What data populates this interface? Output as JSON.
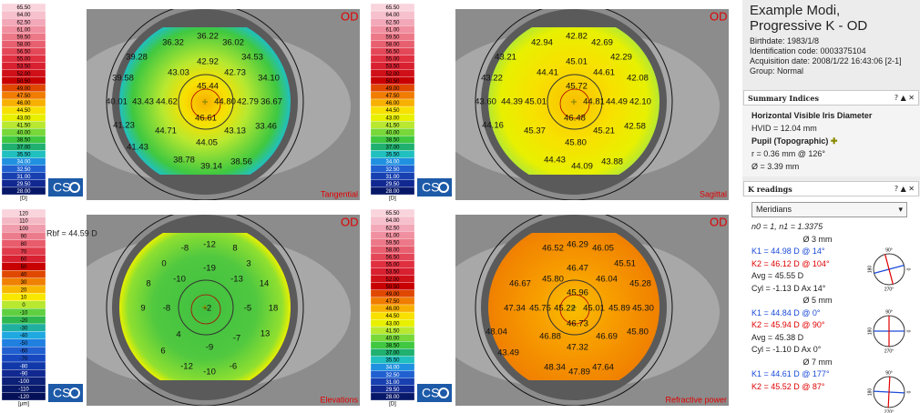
{
  "maps": [
    {
      "title": "Tangential",
      "eye": "OD",
      "logo": "CS",
      "unit": "[D]",
      "palette": "diopter",
      "scale": [
        "65.50",
        "64.00",
        "62.50",
        "61.00",
        "59.50",
        "58.00",
        "56.50",
        "55.00",
        "53.50",
        "52.00",
        "50.50",
        "49.00",
        "47.50",
        "46.00",
        "44.50",
        "43.00",
        "41.50",
        "40.00",
        "38.50",
        "37.00",
        "35.50",
        "34.00",
        "32.50",
        "31.00",
        "29.50",
        "28.00"
      ],
      "values": [
        "36.22",
        "36.32",
        "36.02",
        "39.28",
        "42.92",
        "34.53",
        "43.03",
        "42.73",
        "39.58",
        "34.10",
        "45.44",
        "40.01",
        "43.43",
        "44.62",
        "44.80",
        "42.79",
        "36.67",
        "46.61",
        "41.23",
        "44.71",
        "43.13",
        "33.46",
        "44.05",
        "41.43",
        "38.78",
        "39.14",
        "38.56"
      ]
    },
    {
      "title": "Sagittal",
      "eye": "OD",
      "logo": "CS",
      "unit": "[D]",
      "palette": "diopter",
      "scale": [
        "65.50",
        "64.00",
        "62.50",
        "61.00",
        "59.50",
        "58.00",
        "56.50",
        "55.00",
        "53.50",
        "52.00",
        "50.50",
        "49.00",
        "47.50",
        "46.00",
        "44.50",
        "43.00",
        "41.50",
        "40.00",
        "38.50",
        "37.00",
        "35.50",
        "34.00",
        "32.50",
        "31.00",
        "29.50",
        "28.00"
      ],
      "values": [
        "42.82",
        "42.94",
        "42.69",
        "43.21",
        "45.01",
        "42.29",
        "44.41",
        "44.61",
        "43.22",
        "42.08",
        "45.72",
        "43.60",
        "44.39",
        "45.01",
        "44.81",
        "44.49",
        "42.10",
        "46.48",
        "44.16",
        "45.37",
        "45.21",
        "42.58",
        "45.80",
        "44.43",
        "44.09",
        "43.88"
      ]
    },
    {
      "title": "Elevations",
      "eye": "OD",
      "logo": "CS",
      "unit": "[µm]",
      "palette": "elevation",
      "note": "Rbf = 44.59 D",
      "scale": [
        "120",
        "110",
        "100",
        "90",
        "80",
        "70",
        "60",
        "50",
        "40",
        "30",
        "20",
        "10",
        "0",
        "-10",
        "-20",
        "-30",
        "-40",
        "-50",
        "-60",
        "-70",
        "-80",
        "-90",
        "-100",
        "-110",
        "-120"
      ],
      "values": [
        "-12",
        "-8",
        "8",
        "0",
        "-19",
        "3",
        "-10",
        "-13",
        "8",
        "14",
        "9",
        "-8",
        "-2",
        "-5",
        "18",
        "4",
        "-7",
        "13",
        "6",
        "-9",
        "-12",
        "-10",
        "-6"
      ]
    },
    {
      "title": "Refractive power",
      "eye": "OD",
      "logo": "CS",
      "unit": "[D]",
      "palette": "diopter",
      "scale": [
        "65.50",
        "64.00",
        "62.50",
        "61.00",
        "59.50",
        "58.00",
        "56.50",
        "55.00",
        "53.50",
        "52.00",
        "50.50",
        "49.00",
        "47.50",
        "46.00",
        "44.50",
        "43.00",
        "41.50",
        "40.00",
        "38.50",
        "37.00",
        "35.50",
        "34.00",
        "32.50",
        "31.00",
        "29.50",
        "28.00"
      ],
      "values": [
        "46.29",
        "46.52",
        "46.05",
        "45.51",
        "46.47",
        "45.80",
        "46.04",
        "46.67",
        "45.28",
        "45.96",
        "47.34",
        "45.75",
        "45.22",
        "45.01",
        "45.89",
        "45.30",
        "46.73",
        "48.04",
        "46.88",
        "46.69",
        "45.80",
        "47.32",
        "43.49",
        "48.34",
        "47.89",
        "47.64"
      ]
    }
  ],
  "palettes": {
    "diopter": [
      "#f9d4dc",
      "#f6c0cc",
      "#f2a8b8",
      "#f090a0",
      "#ec7888",
      "#e86070",
      "#e44858",
      "#e03040",
      "#d82030",
      "#d01018",
      "#c80000",
      "#e04800",
      "#f07c00",
      "#f8b000",
      "#f8e000",
      "#e8f000",
      "#b8e830",
      "#78d838",
      "#40c840",
      "#20b070",
      "#20c0c0",
      "#2090e0",
      "#2060d0",
      "#1840b0",
      "#102890",
      "#081868"
    ],
    "elevation": [
      "#f9d4dc",
      "#f4b8c4",
      "#f09cac",
      "#ec7c8c",
      "#e85c6c",
      "#e03c4c",
      "#d82030",
      "#c80000",
      "#e04800",
      "#f08000",
      "#f8b800",
      "#f8e800",
      "#b8e830",
      "#60d040",
      "#30b850",
      "#20b0a0",
      "#20a8e0",
      "#2080e0",
      "#2060d0",
      "#1848c0",
      "#1038a8",
      "#102890",
      "#0c2078",
      "#081868",
      "#041058"
    ]
  },
  "patient": {
    "name": "Example Modi,",
    "exam": "Progressive K - OD",
    "birthdate": "Birthdate: 1983/1/8",
    "id": "Identification code: 0003375104",
    "acquisition": "Acquisition date: 2008/1/22 16:43:06 [2-1]",
    "group": "Group: Normal"
  },
  "panel_buttons": "? ▲ ✕",
  "summary": {
    "header": "Summary Indices",
    "hvid_title": "Horizontal Visible Iris Diameter",
    "hvid": "HVID = 12.04 mm",
    "pupil_title": "Pupil (Topographic)",
    "pupil_r": "r = 0.36 mm @ 126°",
    "pupil_d": "Ø = 3.39 mm"
  },
  "k_readings": {
    "header": "K readings",
    "mode": "Meridians",
    "indices": "n0 = 1, n1 = 1.3375",
    "dial": {
      "top": "90°",
      "left": "180",
      "right": "0",
      "bottom": "270°"
    },
    "groups": [
      {
        "diameter": "Ø 3 mm",
        "k1": "K1 = 44.98 D @ 14°",
        "k2": "K2 = 46.12 D @ 104°",
        "avg": "Avg = 45.55 D",
        "cyl": "Cyl = -1.13 D Ax 14°"
      },
      {
        "diameter": "Ø 5 mm",
        "k1": "K1 = 44.84 D @ 0°",
        "k2": "K2 = 45.94 D @ 90°",
        "avg": "Avg = 45.38 D",
        "cyl": "Cyl = -1.10 D Ax 0°"
      },
      {
        "diameter": "Ø 7 mm",
        "k1": "K1 = 44.61 D @ 177°",
        "k2": "K2 = 45.52 D @ 87°"
      }
    ]
  }
}
